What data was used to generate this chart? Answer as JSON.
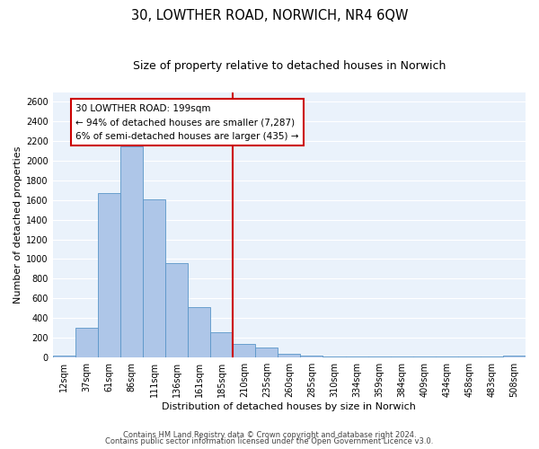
{
  "title": "30, LOWTHER ROAD, NORWICH, NR4 6QW",
  "subtitle": "Size of property relative to detached houses in Norwich",
  "xlabel": "Distribution of detached houses by size in Norwich",
  "ylabel": "Number of detached properties",
  "bin_labels": [
    "12sqm",
    "37sqm",
    "61sqm",
    "86sqm",
    "111sqm",
    "136sqm",
    "161sqm",
    "185sqm",
    "210sqm",
    "235sqm",
    "260sqm",
    "285sqm",
    "310sqm",
    "334sqm",
    "359sqm",
    "384sqm",
    "409sqm",
    "434sqm",
    "458sqm",
    "483sqm",
    "508sqm"
  ],
  "bar_heights": [
    20,
    300,
    1670,
    2150,
    1610,
    960,
    510,
    255,
    130,
    100,
    30,
    20,
    5,
    5,
    5,
    5,
    5,
    5,
    5,
    5,
    20
  ],
  "bar_color": "#aec6e8",
  "bar_edge_color": "#5a96c8",
  "vline_color": "#cc0000",
  "annotation_title": "30 LOWTHER ROAD: 199sqm",
  "annotation_line1": "← 94% of detached houses are smaller (7,287)",
  "annotation_line2": "6% of semi-detached houses are larger (435) →",
  "annotation_box_color": "#ffffff",
  "annotation_box_edge": "#cc0000",
  "ylim": [
    0,
    2700
  ],
  "yticks": [
    0,
    200,
    400,
    600,
    800,
    1000,
    1200,
    1400,
    1600,
    1800,
    2000,
    2200,
    2400,
    2600
  ],
  "footer1": "Contains HM Land Registry data © Crown copyright and database right 2024.",
  "footer2": "Contains public sector information licensed under the Open Government Licence v3.0.",
  "bg_color": "#eaf2fb",
  "title_fontsize": 10.5,
  "subtitle_fontsize": 9,
  "axis_label_fontsize": 8,
  "tick_fontsize": 7,
  "footer_fontsize": 6,
  "annotation_fontsize": 7.5
}
